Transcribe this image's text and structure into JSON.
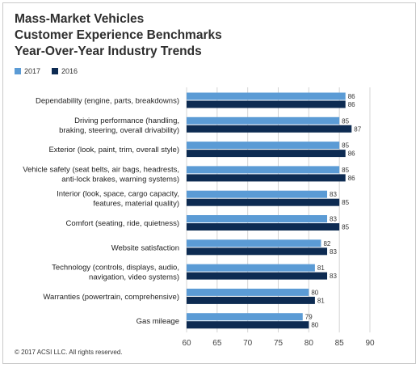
{
  "title_lines": [
    "Mass-Market Vehicles",
    "Customer Experience Benchmarks",
    "Year-Over-Year Industry Trends"
  ],
  "legend": [
    {
      "label": "2017",
      "color": "#5b9bd5"
    },
    {
      "label": "2016",
      "color": "#0d2b52"
    }
  ],
  "footer": "© 2017 ACSI LLC. All rights reserved.",
  "chart_data": {
    "type": "bar",
    "orientation": "horizontal",
    "xlim": [
      60,
      90
    ],
    "xticks": [
      60,
      65,
      70,
      75,
      80,
      85,
      90
    ],
    "grid": true,
    "legend_position": "top-left",
    "categories": [
      [
        "Dependability (engine, parts, breakdowns)"
      ],
      [
        "Driving performance (handling,",
        "braking, steering, overall drivability)"
      ],
      [
        "Exterior (look, paint, trim, overall style)"
      ],
      [
        "Vehicle safety (seat belts, air bags, headrests,",
        "anti-lock brakes, warning systems)"
      ],
      [
        "Interior (look, space, cargo capacity,",
        "features, material quality)"
      ],
      [
        "Comfort (seating, ride, quietness)"
      ],
      [
        "Website satisfaction"
      ],
      [
        "Technology (controls, displays, audio,",
        "navigation, video systems)"
      ],
      [
        "Warranties (powertrain, comprehensive)"
      ],
      [
        "Gas mileage"
      ]
    ],
    "series": [
      {
        "name": "2017",
        "color": "#5b9bd5",
        "values": [
          86,
          85,
          85,
          85,
          83,
          83,
          82,
          81,
          80,
          79
        ]
      },
      {
        "name": "2016",
        "color": "#0d2b52",
        "values": [
          86,
          87,
          86,
          86,
          85,
          85,
          83,
          83,
          81,
          80
        ]
      }
    ]
  }
}
